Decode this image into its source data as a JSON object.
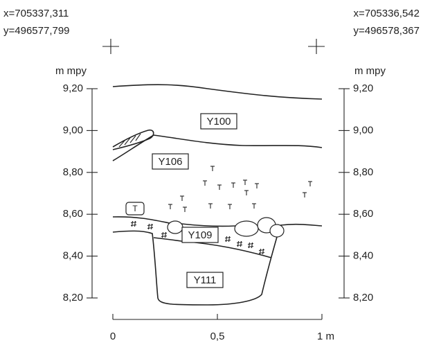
{
  "coordinates": {
    "left": {
      "x": "x=705337,311",
      "y": "y=496577,799"
    },
    "right": {
      "x": "x=705336,542",
      "y": "y=496578,367"
    }
  },
  "axes": {
    "unit": "m mpy",
    "ticks": [
      "9,20",
      "9,00",
      "8,80",
      "8,60",
      "8,40",
      "8,20"
    ]
  },
  "layers": [
    "Y100",
    "Y106",
    "Y109",
    "Y111"
  ],
  "symbol": "T",
  "scale": [
    "0",
    "0,5",
    "1 m"
  ]
}
